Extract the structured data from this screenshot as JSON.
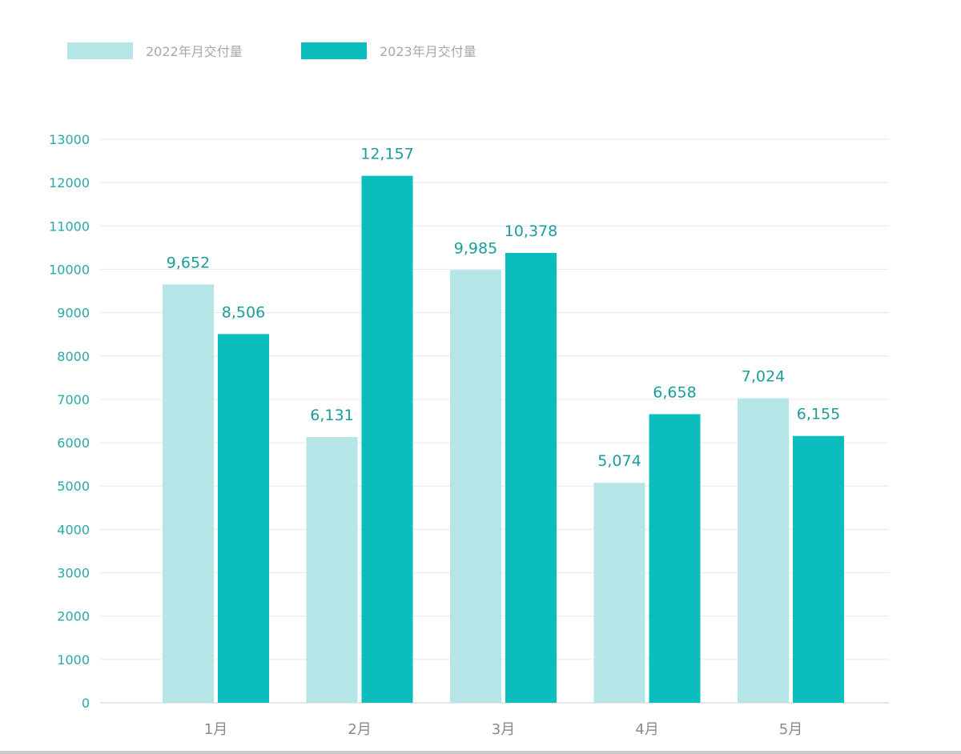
{
  "chart_data": {
    "type": "bar",
    "title": "",
    "xlabel": "",
    "ylabel": "",
    "categories": [
      "1月",
      "2月",
      "3月",
      "4月",
      "5月"
    ],
    "series": [
      {
        "name": "2022年月交付量",
        "color": "#b6e5e8",
        "values": [
          9652,
          6131,
          9985,
          5074,
          7024
        ],
        "labels": [
          "9,652",
          "6,131",
          "9,985",
          "5,074",
          "7,024"
        ]
      },
      {
        "name": "2023年月交付量",
        "color": "#0bbdbd",
        "values": [
          8506,
          12157,
          10378,
          6658,
          6155
        ],
        "labels": [
          "8,506",
          "12,157",
          "10,378",
          "6,658",
          "6,155"
        ]
      }
    ],
    "ylim": [
      0,
      13000
    ],
    "yticks": [
      0,
      1000,
      2000,
      3000,
      4000,
      5000,
      6000,
      7000,
      8000,
      9000,
      10000,
      11000,
      12000,
      13000
    ],
    "ytick_labels": [
      "0",
      "1000",
      "2000",
      "3000",
      "4000",
      "5000",
      "6000",
      "7000",
      "8000",
      "9000",
      "10000",
      "11000",
      "12000",
      "13000"
    ],
    "grid": true,
    "legend_position": "top-left"
  }
}
